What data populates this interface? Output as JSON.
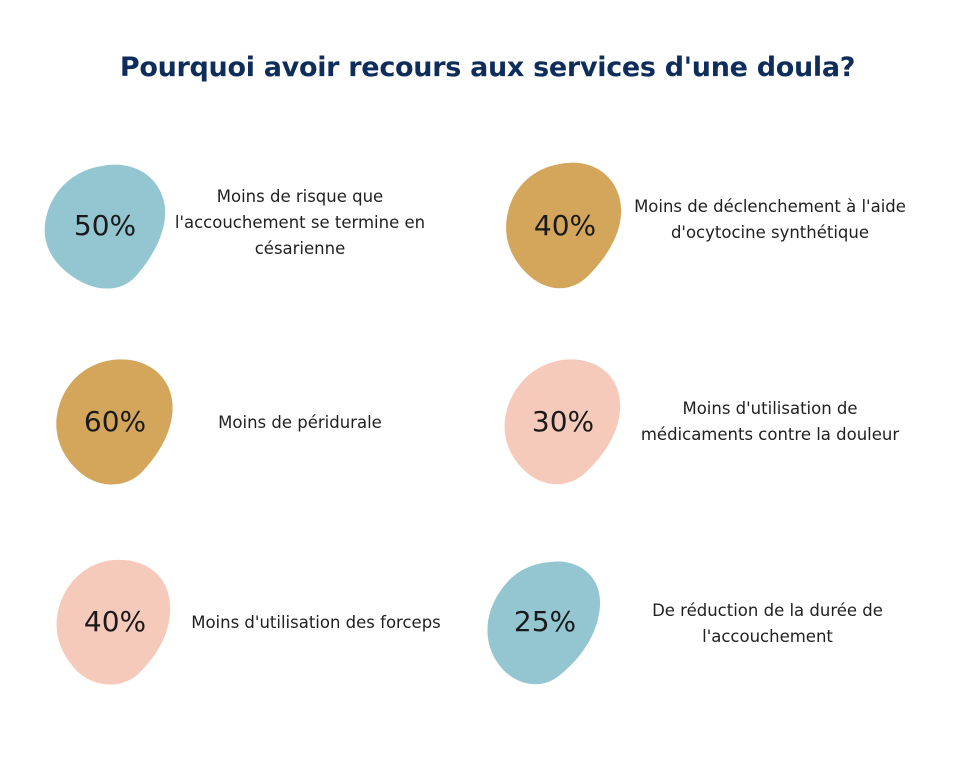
{
  "title": "Pourquoi avoir recours aux services d'une doula?",
  "colors": {
    "blue": "#93c6d1",
    "gold": "#d4a65b",
    "pink": "#f6cabb",
    "title": "#0f2d5a"
  },
  "stats": [
    {
      "percent": "50%",
      "text": "Moins de risque que\nl'accouchement se termine en\ncésarienne",
      "color": "blue"
    },
    {
      "percent": "40%",
      "text": "Moins de déclenchement à l'aide\nd'ocytocine synthétique",
      "color": "gold"
    },
    {
      "percent": "60%",
      "text": "Moins de péridurale",
      "color": "gold"
    },
    {
      "percent": "30%",
      "text": "Moins d'utilisation de\nmédicaments contre la douleur",
      "color": "pink"
    },
    {
      "percent": "40%",
      "text": "Moins d'utilisation des forceps",
      "color": "pink"
    },
    {
      "percent": "25%",
      "text": "De réduction de la durée de\nl'accouchement",
      "color": "blue"
    }
  ]
}
